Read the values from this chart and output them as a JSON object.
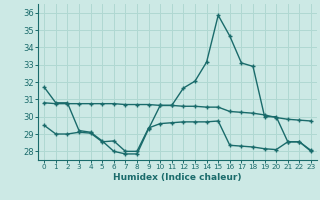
{
  "xlabel": "Humidex (Indice chaleur)",
  "bg_color": "#cce9e5",
  "line_color": "#1a6b6b",
  "grid_color": "#b0d8d2",
  "xlim": [
    -0.5,
    23.5
  ],
  "ylim": [
    27.5,
    36.5
  ],
  "yticks": [
    28,
    29,
    30,
    31,
    32,
    33,
    34,
    35,
    36
  ],
  "xticks": [
    0,
    1,
    2,
    3,
    4,
    5,
    6,
    7,
    8,
    9,
    10,
    11,
    12,
    13,
    14,
    15,
    16,
    17,
    18,
    19,
    20,
    21,
    22,
    23
  ],
  "series1": [
    31.7,
    30.8,
    30.8,
    29.2,
    29.1,
    28.6,
    28.0,
    27.85,
    27.85,
    29.3,
    30.65,
    30.65,
    31.65,
    32.05,
    33.15,
    35.85,
    34.65,
    33.1,
    32.9,
    30.0,
    30.0,
    28.55,
    28.55,
    28.05
  ],
  "series2": [
    30.8,
    30.75,
    30.75,
    30.75,
    30.75,
    30.75,
    30.75,
    30.7,
    30.7,
    30.7,
    30.65,
    30.65,
    30.6,
    30.6,
    30.55,
    30.55,
    30.3,
    30.25,
    30.2,
    30.1,
    29.95,
    29.85,
    29.8,
    29.75
  ],
  "series3": [
    29.5,
    29.0,
    29.0,
    29.1,
    29.05,
    28.55,
    28.6,
    28.0,
    28.0,
    29.35,
    29.6,
    29.65,
    29.7,
    29.7,
    29.7,
    29.75,
    28.35,
    28.3,
    28.25,
    28.15,
    28.1,
    28.55,
    28.55,
    28.0
  ]
}
